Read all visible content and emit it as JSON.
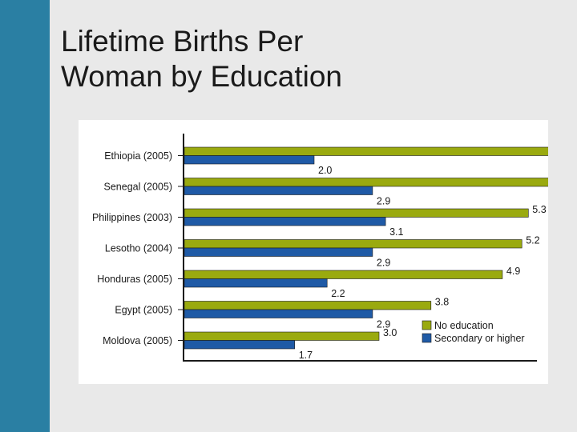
{
  "slide": {
    "title_line1": "Lifetime Births Per",
    "title_line2": "Woman by Education"
  },
  "colors": {
    "side_bar": "#2a7fa3",
    "no_education": "#9aaa0f",
    "secondary_or_higher": "#1f5aa6",
    "axis": "#1a1a1a"
  },
  "chart_data": {
    "type": "bar",
    "orientation": "horizontal",
    "title": "",
    "xlabel": "",
    "ylabel": "",
    "categories": [
      "Ethiopia (2005)",
      "Senegal (2005)",
      "Philippines (2003)",
      "Lesotho (2004)",
      "Honduras (2005)",
      "Egypt (2005)",
      "Moldova (2005)"
    ],
    "series": [
      {
        "name": "No education",
        "values": [
          6.1,
          6.0,
          5.3,
          5.2,
          4.9,
          3.8,
          3.0
        ]
      },
      {
        "name": "Secondary or higher",
        "values": [
          2.0,
          2.9,
          3.1,
          2.9,
          2.2,
          2.9,
          1.7
        ]
      }
    ],
    "xlim": [
      0,
      6.5
    ],
    "grid": false,
    "legend_position": "bottom-right"
  }
}
